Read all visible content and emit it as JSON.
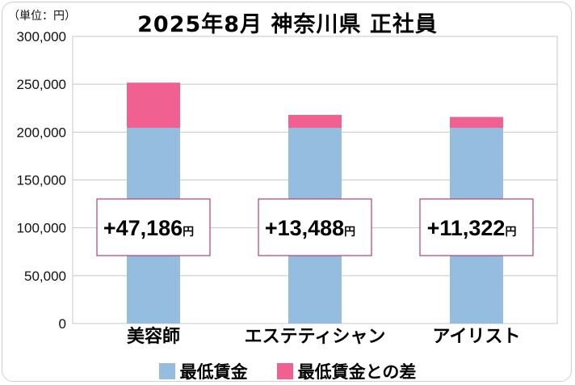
{
  "unit_label": "（単位：円）",
  "title": "2025年8月 神奈川県 正社員",
  "chart_data": {
    "type": "bar",
    "stacked": true,
    "categories": [
      "美容師",
      "エステティシャン",
      "アイリスト"
    ],
    "series": [
      {
        "name": "最低賃金",
        "values": [
          204500,
          204500,
          204500
        ],
        "color": "#94bde0"
      },
      {
        "name": "最低賃金との差",
        "values": [
          47186,
          13488,
          11322
        ],
        "color": "#f06090"
      }
    ],
    "ylim": [
      0,
      300000
    ],
    "yticks": [
      0,
      50000,
      100000,
      150000,
      200000,
      250000,
      300000
    ],
    "ytick_labels": [
      "0",
      "50,000",
      "100,000",
      "150,000",
      "200,000",
      "250,000",
      "300,000"
    ],
    "annotations": [
      {
        "value": "+47,186",
        "suffix": "円"
      },
      {
        "value": "+13,488",
        "suffix": "円"
      },
      {
        "value": "+11,322",
        "suffix": "円"
      }
    ],
    "grid": true,
    "legend_position": "bottom"
  }
}
